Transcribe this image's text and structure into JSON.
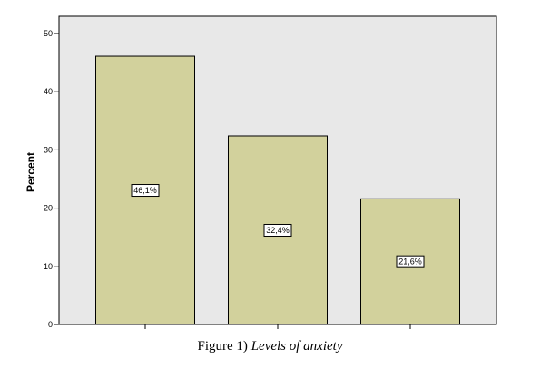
{
  "chart_data": {
    "type": "bar",
    "categories": [
      "",
      "",
      ""
    ],
    "values": [
      46.1,
      32.4,
      21.6
    ],
    "data_labels": [
      "46,1%",
      "32,4%",
      "21,6%"
    ],
    "title": "",
    "xlabel": "",
    "ylabel": "Percent",
    "ylim": [
      0,
      50
    ],
    "yticks": [
      0,
      10,
      20,
      30,
      40,
      50
    ],
    "grid": false,
    "colors": {
      "plot_background": "#e8e8e8",
      "bar_fill": "#d2d19c",
      "bar_stroke": "#000000"
    }
  },
  "caption": {
    "label": "Figure 1)",
    "title": "Levels of anxiety"
  }
}
